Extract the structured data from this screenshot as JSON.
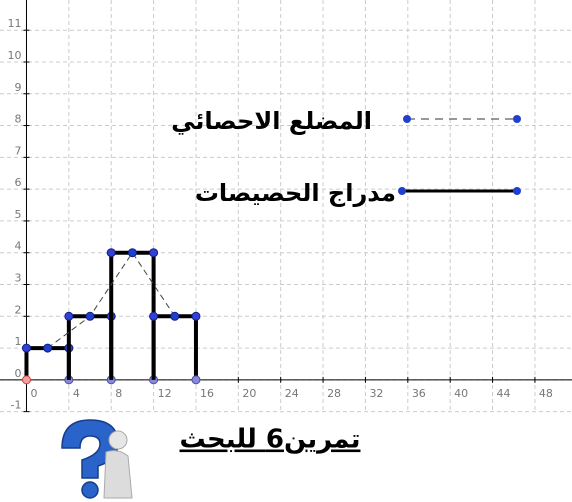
{
  "chart_data": {
    "type": "histogram",
    "title": "تمرين6 للبحث",
    "histogram": {
      "name": "مدراج الحصيصات",
      "bins": [
        0,
        4,
        8,
        12,
        16
      ],
      "counts": [
        1,
        2,
        4,
        2
      ],
      "color": "#000000"
    },
    "polygon": {
      "name": "المضلع الاحصائي",
      "x": [
        2,
        6,
        10,
        14
      ],
      "values": [
        1,
        2,
        4,
        2
      ],
      "color": "#1f3fd0"
    },
    "xlim": [
      -2.5,
      51.5
    ],
    "ylim": [
      -1.2,
      11.95
    ],
    "xticks": [
      0,
      4,
      8,
      12,
      16,
      20,
      24,
      28,
      32,
      36,
      40,
      44,
      48
    ],
    "yticks": [
      -1,
      0,
      1,
      2,
      3,
      4,
      5,
      6,
      7,
      8,
      9,
      10,
      11
    ],
    "grid": true
  }
}
